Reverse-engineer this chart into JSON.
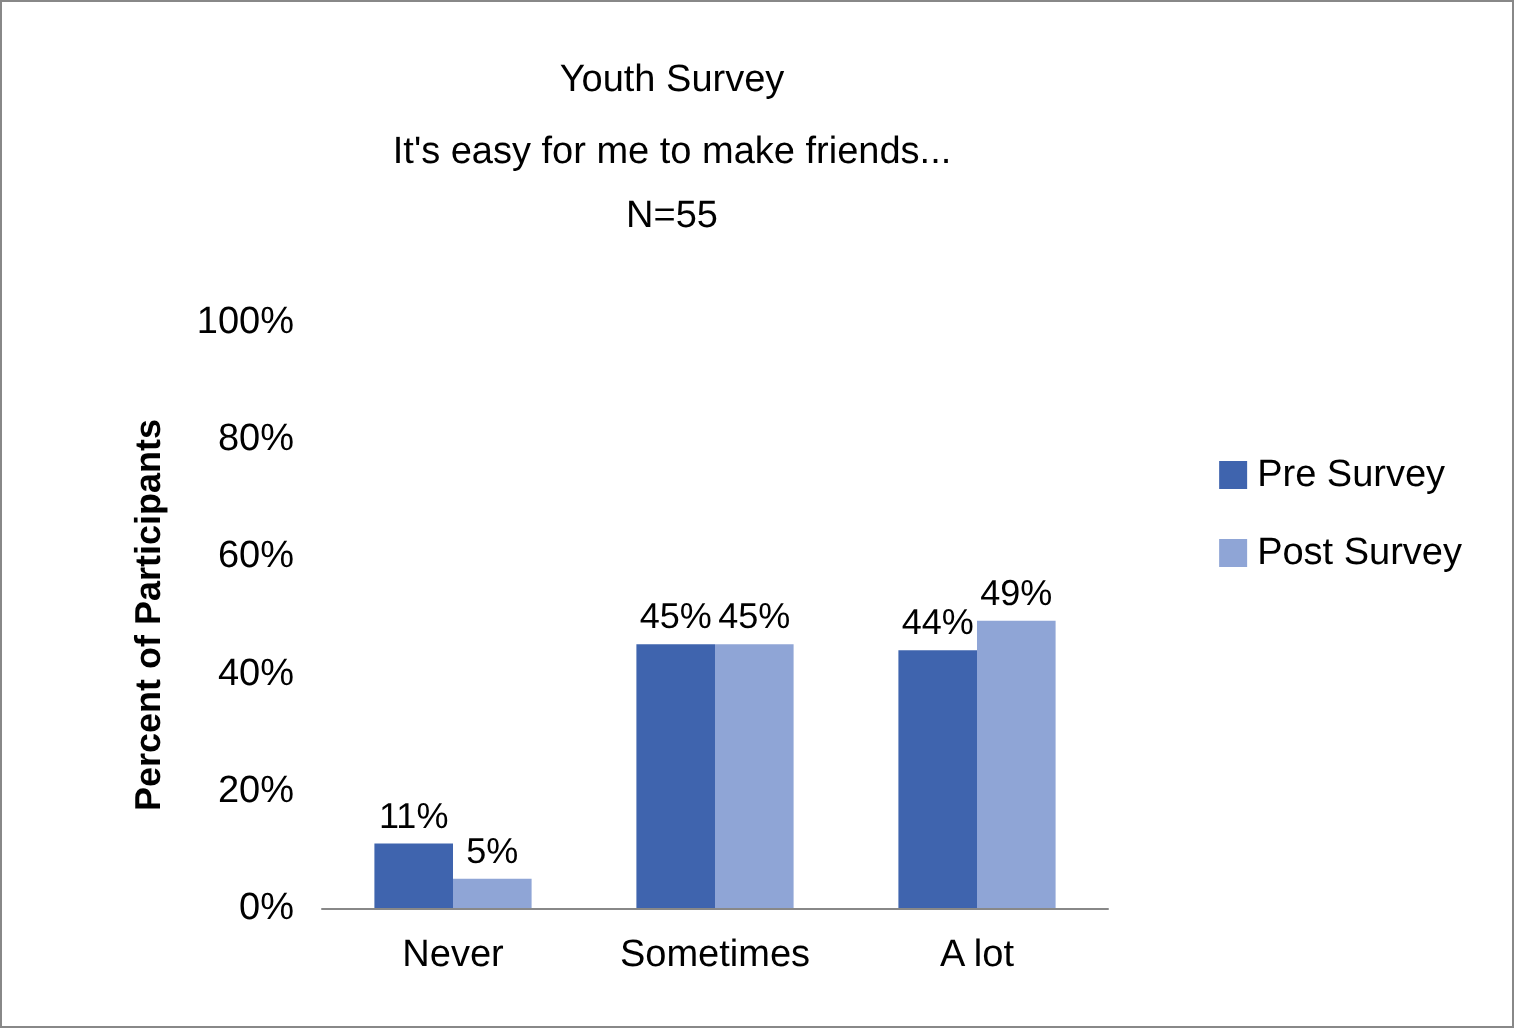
{
  "chart_data": {
    "type": "bar",
    "title": "Youth Survey",
    "subtitle": "It's easy for me to make friends...\nN=55",
    "ylabel": "Percent of Participants",
    "categories": [
      "Never",
      "Sometimes",
      "A lot"
    ],
    "series": [
      {
        "name": "Pre Survey",
        "color": "#3f64ae",
        "values": [
          11,
          45,
          44
        ],
        "value_labels": [
          "11%",
          "45%",
          "44%"
        ]
      },
      {
        "name": "Post Survey",
        "color": "#8fa5d6",
        "values": [
          5,
          45,
          49
        ],
        "value_labels": [
          "5%",
          "45%",
          "49%"
        ]
      }
    ],
    "ylim": [
      0,
      100
    ],
    "yticks": [
      {
        "value": 0,
        "label": "0%"
      },
      {
        "value": 20,
        "label": "20%"
      },
      {
        "value": 40,
        "label": "40%"
      },
      {
        "value": 60,
        "label": "60%"
      },
      {
        "value": 80,
        "label": "80%"
      },
      {
        "value": 100,
        "label": "100%"
      }
    ],
    "grid": false,
    "legend": "right"
  }
}
